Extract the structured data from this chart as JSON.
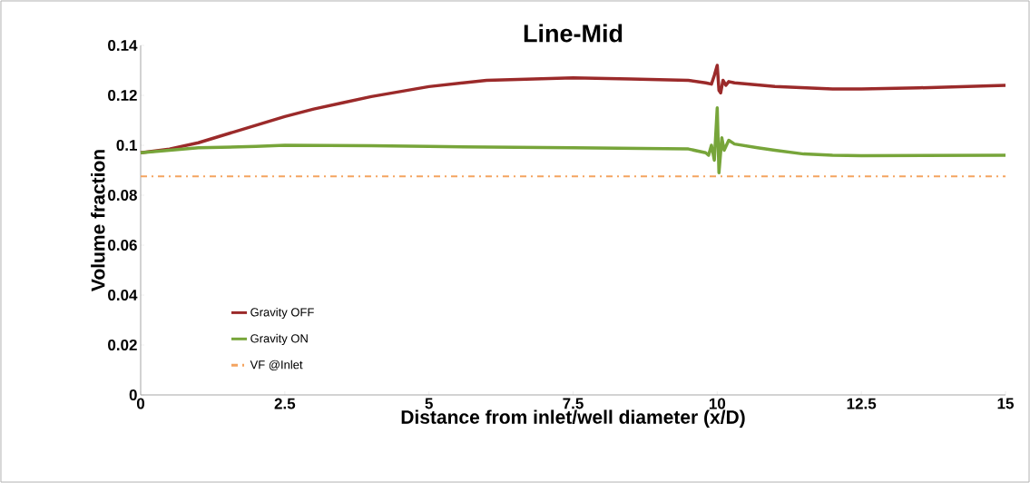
{
  "chart_data": {
    "type": "line",
    "title": "Line-Mid",
    "xlabel": "Distance from inlet/well diameter (x/D)",
    "ylabel": "Volume fraction",
    "xlim": [
      0,
      15
    ],
    "ylim": [
      0,
      0.14
    ],
    "xticks": [
      0,
      2.5,
      5,
      7.5,
      10,
      12.5,
      15
    ],
    "yticks": [
      0,
      0.02,
      0.04,
      0.06,
      0.08,
      0.1,
      0.12,
      0.14
    ],
    "grid": false,
    "legend": "bottom left",
    "marker": "none",
    "line_style": "solid",
    "series": [
      {
        "name": "Gravity OFF",
        "color": "#9b2a2a",
        "x": [
          0,
          0.5,
          1,
          1.5,
          2,
          2.5,
          3,
          3.5,
          4,
          5,
          6,
          7.5,
          8.5,
          9.5,
          9.8,
          9.9,
          9.95,
          10.0,
          10.03,
          10.06,
          10.1,
          10.15,
          10.2,
          10.3,
          11,
          12,
          12.5,
          13.5,
          15
        ],
        "values": [
          0.097,
          0.0985,
          0.101,
          0.1045,
          0.108,
          0.1115,
          0.1145,
          0.117,
          0.1195,
          0.1235,
          0.126,
          0.127,
          0.1265,
          0.126,
          0.125,
          0.1245,
          0.128,
          0.132,
          0.122,
          0.121,
          0.126,
          0.124,
          0.1255,
          0.125,
          0.1235,
          0.1225,
          0.1225,
          0.123,
          0.124
        ]
      },
      {
        "name": "Gravity ON",
        "color": "#77a53a",
        "x": [
          0,
          0.5,
          1,
          2,
          2.5,
          4,
          5,
          7.5,
          9.5,
          9.8,
          9.85,
          9.9,
          9.95,
          10.0,
          10.03,
          10.08,
          10.12,
          10.2,
          10.3,
          10.7,
          11,
          11.5,
          12,
          12.5,
          15
        ],
        "values": [
          0.097,
          0.098,
          0.099,
          0.0995,
          0.1,
          0.0998,
          0.0995,
          0.099,
          0.0985,
          0.097,
          0.096,
          0.1,
          0.094,
          0.115,
          0.089,
          0.103,
          0.098,
          0.102,
          0.1005,
          0.099,
          0.098,
          0.0965,
          0.096,
          0.0958,
          0.096
        ]
      }
    ],
    "ref_lines": [
      {
        "axis": "y",
        "value": 0.0875,
        "label": "VF @Inlet",
        "color": "#f4a460",
        "line_style": "dashdot"
      }
    ]
  }
}
